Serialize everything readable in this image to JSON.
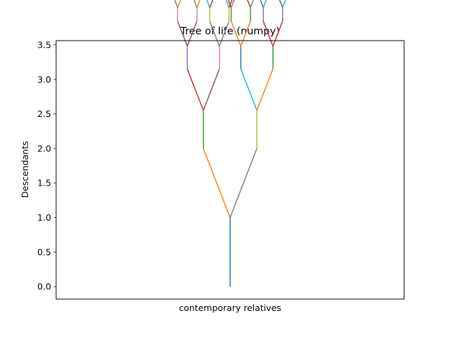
{
  "chart_data": {
    "type": "line",
    "title": "Tree of life (numpy)",
    "xlabel": "contemporary relatives",
    "ylabel": "Descendants",
    "ylim": [
      -0.18,
      3.56
    ],
    "xlim": [
      -2.6,
      2.6
    ],
    "xticks_visible": false,
    "yticks": [
      0.0,
      0.5,
      1.0,
      1.5,
      2.0,
      2.5,
      3.0,
      3.5
    ],
    "ytick_labels": [
      "0.0",
      "0.5",
      "1.0",
      "1.5",
      "2.0",
      "2.5",
      "3.0",
      "3.5"
    ],
    "grid": false,
    "legend": "none",
    "structure": "recursive binary branching tree: trunk from (0, 0) to (0, 1); at each level every branch forks into two children spreading outward, each child a straight segment followed by a vertical continuation; branch length shrinks by a factor of 0.6 per level",
    "recursion_levels": 10,
    "branch_ratio": 0.6,
    "palette": [
      "#1f77b4",
      "#ff7f0e",
      "#2ca02c",
      "#d62728",
      "#9467bd",
      "#8c564b",
      "#e377c2",
      "#7f7f7f",
      "#bcbd22",
      "#17becf"
    ]
  }
}
